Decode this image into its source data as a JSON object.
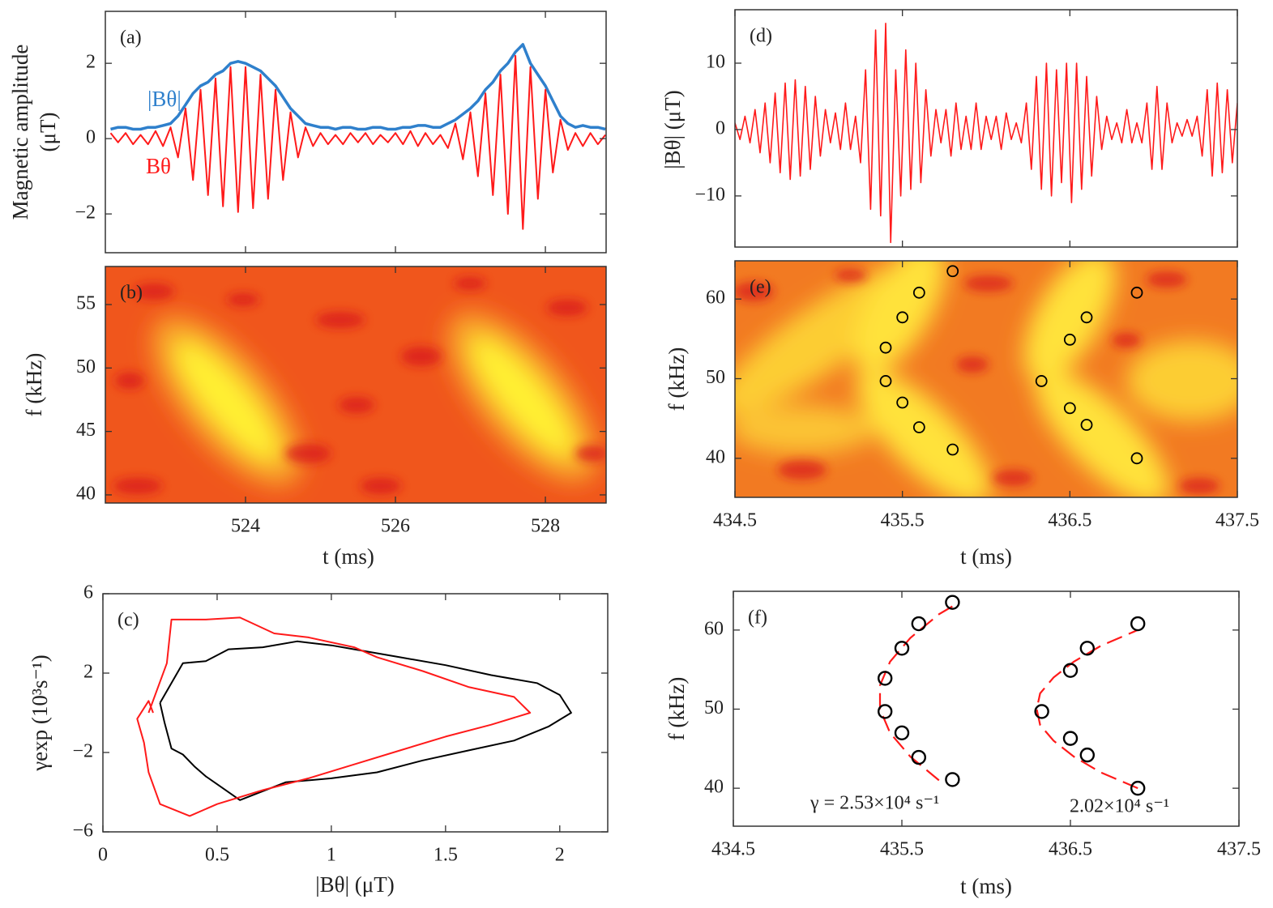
{
  "chart_data": [
    {
      "type": "line",
      "panel_label": "(a)",
      "ylabel": [
        "Magnetic amplitude",
        "(μT)"
      ],
      "xlim": [
        522.13,
        528.81
      ],
      "xticks": [
        524,
        526,
        528
      ],
      "xtick_labels": false,
      "ylim": [
        -3.03,
        3.38
      ],
      "yticks": [
        {
          "value": -2,
          "label": "−2"
        },
        0,
        2
      ],
      "x": [
        522.2,
        522.3,
        522.4,
        522.5,
        522.6,
        522.7,
        522.8,
        522.9,
        523.0,
        523.1,
        523.2,
        523.3,
        523.4,
        523.5,
        523.6,
        523.7,
        523.8,
        523.9,
        524.0,
        524.1,
        524.2,
        524.3,
        524.4,
        524.5,
        524.6,
        524.7,
        524.8,
        524.9,
        525.0,
        525.1,
        525.2,
        525.3,
        525.4,
        525.5,
        525.6,
        525.7,
        525.8,
        525.9,
        526.0,
        526.1,
        526.2,
        526.3,
        526.4,
        526.5,
        526.6,
        526.7,
        526.8,
        526.9,
        527.0,
        527.1,
        527.2,
        527.3,
        527.4,
        527.5,
        527.6,
        527.7,
        527.8,
        527.9,
        528.0,
        528.1,
        528.2,
        528.3,
        528.4,
        528.5,
        528.6,
        528.7,
        528.8
      ],
      "series": [
        {
          "name": "|Bθ|",
          "color": "#2f80cc",
          "width": 3.5,
          "values": [
            0.25,
            0.3,
            0.3,
            0.25,
            0.25,
            0.3,
            0.3,
            0.35,
            0.4,
            0.6,
            0.9,
            1.2,
            1.4,
            1.5,
            1.7,
            1.8,
            2.0,
            2.05,
            2.0,
            1.9,
            1.8,
            1.6,
            1.4,
            1.1,
            0.8,
            0.6,
            0.4,
            0.35,
            0.3,
            0.3,
            0.25,
            0.3,
            0.3,
            0.25,
            0.25,
            0.3,
            0.3,
            0.25,
            0.25,
            0.3,
            0.3,
            0.35,
            0.35,
            0.3,
            0.3,
            0.4,
            0.5,
            0.65,
            0.8,
            1.0,
            1.3,
            1.5,
            1.8,
            2.0,
            2.3,
            2.5,
            2.0,
            1.7,
            1.4,
            1.0,
            0.6,
            0.4,
            0.3,
            0.35,
            0.3,
            0.3,
            0.25
          ]
        },
        {
          "name": "Bθ",
          "color": "#ff1a1a",
          "width": 2,
          "values": [
            0.15,
            -0.1,
            0.15,
            -0.15,
            0.1,
            -0.15,
            0.2,
            -0.2,
            0.3,
            -0.5,
            0.8,
            -1.1,
            1.3,
            -1.5,
            1.6,
            -1.8,
            1.9,
            -1.95,
            1.9,
            -1.85,
            1.7,
            -1.6,
            1.3,
            -1.1,
            0.7,
            -0.5,
            0.3,
            -0.2,
            0.15,
            -0.15,
            0.1,
            -0.15,
            0.15,
            -0.1,
            0.15,
            -0.15,
            0.1,
            -0.1,
            0.15,
            -0.15,
            0.2,
            -0.2,
            0.15,
            -0.15,
            0.1,
            -0.25,
            0.4,
            -0.55,
            0.7,
            -1.0,
            1.2,
            -1.5,
            1.7,
            -2.0,
            2.2,
            -2.4,
            1.9,
            -1.6,
            1.3,
            -0.9,
            0.5,
            -0.3,
            0.15,
            -0.2,
            0.15,
            -0.15,
            0.1
          ]
        }
      ]
    },
    {
      "type": "heatmap",
      "panel_label": "(b)",
      "xlabel": "t (ms)",
      "ylabel": "f (kHz)",
      "xlim": [
        522.13,
        528.81
      ],
      "xticks": [
        524,
        526,
        528
      ],
      "ylim": [
        39.36,
        58
      ],
      "yticks": [
        40,
        45,
        50,
        55
      ]
    },
    {
      "type": "line",
      "panel_label": "(c)",
      "xlabel": "|Bθ| (μT)",
      "ylabel": "γexp (10³s⁻¹)",
      "xlim": [
        0,
        2.21
      ],
      "xticks": [
        0,
        0.5,
        1,
        1.5,
        2
      ],
      "ylim": [
        -6,
        6
      ],
      "yticks": [
        {
          "value": -6,
          "label": "−6"
        },
        {
          "value": -2,
          "label": "−2"
        },
        2,
        6
      ],
      "series": [
        {
          "color": "#000000",
          "width": 2,
          "x": [
            0.25,
            0.3,
            0.35,
            0.45,
            0.55,
            0.7,
            0.85,
            1.0,
            1.1,
            1.3,
            1.5,
            1.7,
            1.9,
            2.0,
            2.05,
            1.95,
            1.8,
            1.6,
            1.4,
            1.2,
            1.0,
            0.8,
            0.6,
            0.5,
            0.45,
            0.4,
            0.35,
            0.3,
            0.27,
            0.25
          ],
          "values": [
            0.5,
            1.5,
            2.5,
            2.6,
            3.2,
            3.3,
            3.6,
            3.4,
            3.2,
            2.8,
            2.4,
            1.9,
            1.5,
            0.9,
            0,
            -0.7,
            -1.4,
            -1.9,
            -2.4,
            -3.0,
            -3.3,
            -3.5,
            -4.4,
            -3.6,
            -3.2,
            -2.7,
            -2.1,
            -1.8,
            -0.5,
            0.5
          ]
        },
        {
          "color": "#ff1a1a",
          "width": 2,
          "x": [
            0.2,
            0.28,
            0.3,
            0.45,
            0.6,
            0.75,
            0.9,
            1.1,
            1.2,
            1.4,
            1.6,
            1.8,
            1.87,
            1.7,
            1.5,
            1.3,
            1.1,
            0.9,
            0.7,
            0.5,
            0.38,
            0.25,
            0.2,
            0.18,
            0.15,
            0.2,
            0.22
          ],
          "values": [
            0,
            2.5,
            4.7,
            4.7,
            4.8,
            4.0,
            3.8,
            3.3,
            2.8,
            2.1,
            1.3,
            0.8,
            0,
            -0.6,
            -1.2,
            -1.9,
            -2.6,
            -3.3,
            -3.9,
            -4.6,
            -5.2,
            -4.6,
            -3,
            -1.5,
            -0.3,
            0.6,
            0
          ]
        }
      ]
    },
    {
      "type": "line",
      "panel_label": "(d)",
      "ylabel": "|Bθ| (μT)",
      "xlim": [
        434.5,
        437.5
      ],
      "xticks": [
        434.5,
        435.5,
        436.5,
        437.5
      ],
      "xtick_labels": false,
      "ylim": [
        -17.7,
        18.05
      ],
      "yticks": [
        {
          "value": -10,
          "label": "−10"
        },
        0,
        10
      ],
      "x": [
        434.5,
        434.53,
        434.56,
        434.59,
        434.62,
        434.65,
        434.68,
        434.71,
        434.74,
        434.77,
        434.8,
        434.83,
        434.86,
        434.89,
        434.92,
        434.95,
        434.98,
        435.01,
        435.04,
        435.07,
        435.1,
        435.13,
        435.16,
        435.19,
        435.22,
        435.25,
        435.28,
        435.31,
        435.34,
        435.37,
        435.4,
        435.43,
        435.46,
        435.49,
        435.52,
        435.55,
        435.58,
        435.61,
        435.64,
        435.67,
        435.7,
        435.73,
        435.76,
        435.79,
        435.82,
        435.85,
        435.88,
        435.91,
        435.94,
        435.97,
        436,
        436.03,
        436.06,
        436.09,
        436.12,
        436.15,
        436.18,
        436.21,
        436.24,
        436.27,
        436.3,
        436.33,
        436.36,
        436.39,
        436.42,
        436.45,
        436.48,
        436.51,
        436.54,
        436.57,
        436.6,
        436.63,
        436.66,
        436.69,
        436.72,
        436.75,
        436.78,
        436.81,
        436.84,
        436.87,
        436.9,
        436.93,
        436.96,
        436.99,
        437.02,
        437.05,
        437.08,
        437.11,
        437.14,
        437.17,
        437.2,
        437.23,
        437.26,
        437.29,
        437.32,
        437.35,
        437.38,
        437.41,
        437.44,
        437.47,
        437.5
      ],
      "series": [
        {
          "color": "#ff1a1a",
          "width": 1.6,
          "values": [
            1,
            -1.5,
            2,
            -2,
            3,
            -3.5,
            4,
            -5,
            5.5,
            -6.5,
            7,
            -7.5,
            7.5,
            -7,
            6.5,
            -6,
            5,
            -4,
            3,
            -2,
            2.5,
            -3,
            4,
            -3,
            2,
            -5,
            9,
            -12,
            15,
            -13,
            16,
            -17,
            9,
            -10,
            12,
            -9,
            10,
            -8,
            6,
            -4,
            3,
            -2,
            3,
            -4,
            4,
            -3,
            2,
            -3,
            4,
            -3,
            2,
            -1.5,
            2,
            -3,
            2.5,
            -1.5,
            1,
            -2,
            4,
            -6,
            8,
            -9,
            10,
            -10,
            9,
            -8,
            10,
            -11,
            10,
            -9,
            8,
            -7,
            5,
            -3,
            2,
            -1.5,
            1,
            -2,
            3,
            -2,
            1,
            -2,
            4,
            -6,
            6.5,
            -6,
            4,
            -2,
            1,
            -1,
            1.5,
            -1,
            2,
            -4,
            6,
            -7,
            7,
            -6.5,
            6,
            -5,
            4
          ]
        }
      ]
    },
    {
      "type": "scatter",
      "panel_label": "(e)",
      "xlabel": "t (ms)",
      "ylabel": "f (kHz)",
      "xlim": [
        434.5,
        437.5
      ],
      "xticks": [
        434.5,
        435.5,
        436.5,
        437.5
      ],
      "ylim": [
        35.1,
        64.8
      ],
      "yticks": [
        40,
        50,
        60
      ],
      "series": [
        {
          "color": "#000000",
          "x": [
            435.8,
            435.6,
            435.5,
            435.4,
            435.4,
            435.5,
            435.6,
            435.8
          ],
          "values": [
            63.5,
            60.8,
            57.7,
            53.9,
            49.7,
            47,
            43.9,
            41.1
          ]
        },
        {
          "color": "#000000",
          "x": [
            436.9,
            436.6,
            436.5,
            436.33,
            436.5,
            436.6,
            436.9
          ],
          "values": [
            60.8,
            57.7,
            54.9,
            49.7,
            46.3,
            44.2,
            40
          ]
        }
      ]
    },
    {
      "type": "scatter",
      "panel_label": "(f)",
      "xlabel": "t (ms)",
      "ylabel": "f (kHz)",
      "xlim": [
        434.5,
        437.5
      ],
      "xticks": [
        434.5,
        435.5,
        436.5,
        437.5
      ],
      "ylim": [
        35.2,
        64.9
      ],
      "yticks": [
        40,
        50,
        60
      ],
      "annotations": [
        "γ = 2.53×10⁴ s⁻¹",
        "2.02×10⁴ s⁻¹"
      ],
      "fits": [
        {
          "color": "#ff1a1a",
          "x": [
            435.72,
            435.55,
            435.43,
            435.37,
            435.37,
            435.43,
            435.55,
            435.72,
            435.84
          ],
          "values": [
            41,
            44,
            47,
            50,
            53,
            56,
            59,
            62,
            63.5
          ]
        },
        {
          "color": "#ff1a1a",
          "x": [
            436.9,
            436.68,
            436.52,
            436.4,
            436.32,
            436.3,
            436.32,
            436.4,
            436.52,
            436.68,
            436.9
          ],
          "values": [
            40,
            42,
            44,
            46,
            48,
            50,
            52,
            54,
            56,
            58,
            60
          ]
        }
      ],
      "series": [
        {
          "color": "#000000",
          "x": [
            435.8,
            435.6,
            435.5,
            435.4,
            435.4,
            435.5,
            435.6,
            435.8
          ],
          "values": [
            63.5,
            60.8,
            57.7,
            53.9,
            49.7,
            47,
            43.9,
            41.1
          ]
        },
        {
          "color": "#000000",
          "x": [
            436.9,
            436.6,
            436.5,
            436.33,
            436.5,
            436.6,
            436.9
          ],
          "values": [
            60.8,
            57.7,
            54.9,
            49.7,
            46.3,
            44.2,
            40
          ]
        }
      ]
    }
  ]
}
